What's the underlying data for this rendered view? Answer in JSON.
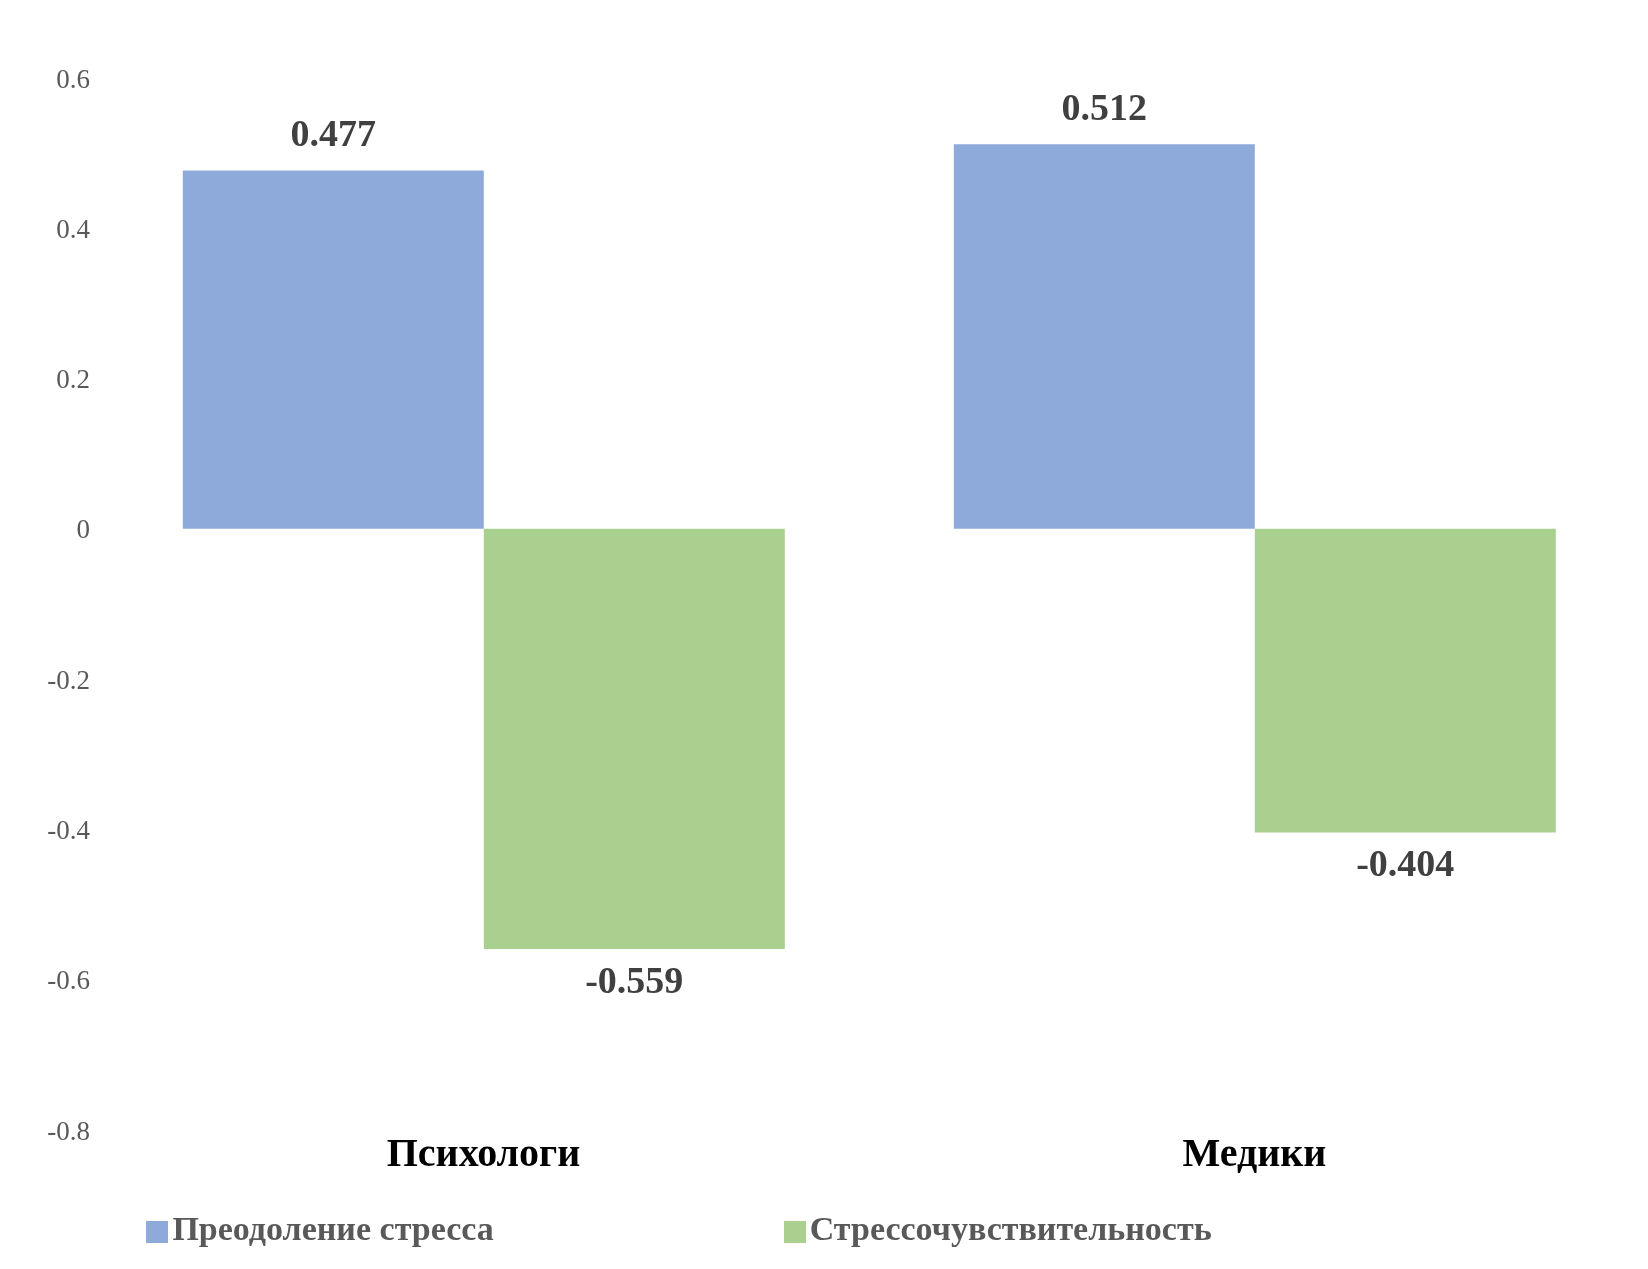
{
  "chart_data": {
    "type": "bar",
    "categories": [
      "Психологи",
      "Медики"
    ],
    "series": [
      {
        "name": "Преодоление стресса",
        "color": "#8eaadb",
        "values": [
          0.477,
          0.512
        ]
      },
      {
        "name": "Стрессочувствительность",
        "color": "#a9d08e",
        "values": [
          -0.559,
          -0.404
        ]
      }
    ],
    "ylim": [
      -0.8,
      0.6
    ],
    "yticks": [
      -0.8,
      -0.6,
      -0.4,
      -0.2,
      0,
      0.2,
      0.4,
      0.6
    ],
    "data_labels": true,
    "grid": false,
    "legend": "bottom"
  }
}
